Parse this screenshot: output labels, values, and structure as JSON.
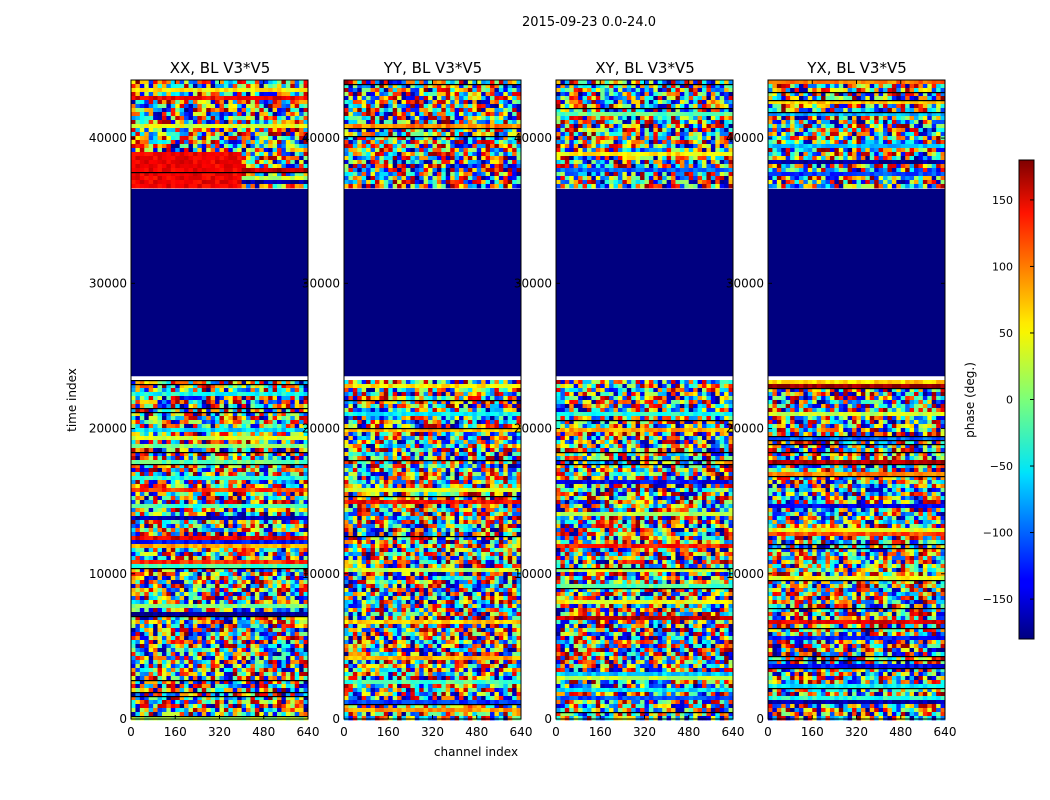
{
  "chart_data": {
    "type": "heatmap",
    "suptitle": "2015-09-23 0.0-24.0",
    "xlabel": "channel index",
    "ylabel": "time index",
    "xlim": [
      0,
      640
    ],
    "ylim": [
      0,
      44000
    ],
    "xticks": [
      0,
      160,
      320,
      480,
      640
    ],
    "yticks": [
      0,
      10000,
      20000,
      30000,
      40000
    ],
    "panels": [
      {
        "title": "XX, BL V3*V5",
        "id": "xx"
      },
      {
        "title": "YY, BL V3*V5",
        "id": "yy"
      },
      {
        "title": "XY, BL V3*V5",
        "id": "xy"
      },
      {
        "title": "YX, BL V3*V5",
        "id": "yx"
      }
    ],
    "colorbar": {
      "label": "phase (deg.)",
      "range": [
        -180,
        180
      ],
      "ticks": [
        150,
        100,
        50,
        0,
        -50,
        -100,
        -150
      ],
      "tick_labels": [
        "150",
        "100",
        "50",
        "0",
        "−50",
        "−100",
        "−150"
      ],
      "colormap": "jet"
    },
    "flagged_block": {
      "time_start": 23600,
      "time_end": 36500,
      "phase": -180
    },
    "colors": {
      "flag": "#000080",
      "axes": "#000000"
    }
  }
}
